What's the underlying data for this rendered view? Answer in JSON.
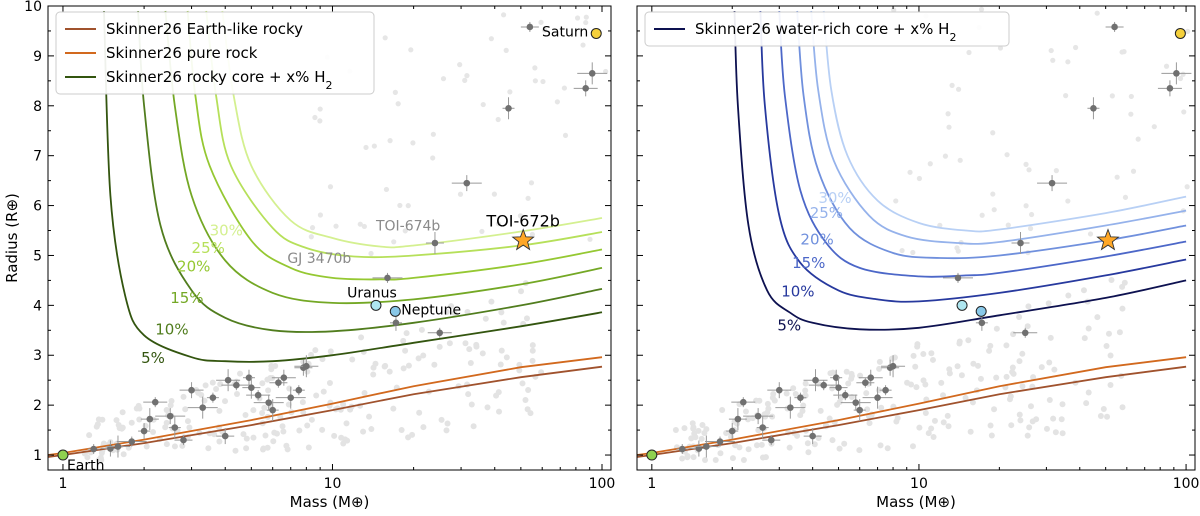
{
  "chart_data": [
    {
      "type": "line",
      "xlabel": "Mass (M⊕)",
      "ylabel": "Radius (R⊕)",
      "xscale": "log",
      "xlim": [
        0.88,
        108
      ],
      "ylim": [
        0.7,
        10
      ],
      "x_ticks": [
        1,
        10,
        100
      ],
      "x_tick_labels": [
        "1",
        "10",
        "100"
      ],
      "y_ticks": [
        1,
        2,
        3,
        4,
        5,
        6,
        7,
        8,
        9,
        10
      ],
      "legend_placement": "top-left",
      "grid": false,
      "legend": [
        {
          "label": "Skinner26 Earth-like rocky",
          "color": "#a0522d"
        },
        {
          "label": "Skinner26 pure rock",
          "color": "#d2691e"
        },
        {
          "label": "Skinner26 rocky core + x% H",
          "sub": "2",
          "color": "#33550f"
        }
      ],
      "rocky_curves": [
        {
          "name": "Skinner26 Earth-like rocky",
          "color": "#a0522d",
          "points": [
            [
              0.88,
              0.96
            ],
            [
              1,
              1.0
            ],
            [
              2,
              1.24
            ],
            [
              5,
              1.6
            ],
            [
              10,
              1.9
            ],
            [
              20,
              2.22
            ],
            [
              50,
              2.56
            ],
            [
              100,
              2.77
            ]
          ]
        },
        {
          "name": "Skinner26 pure rock",
          "color": "#d2691e",
          "points": [
            [
              0.88,
              1.0
            ],
            [
              1,
              1.04
            ],
            [
              2,
              1.31
            ],
            [
              5,
              1.7
            ],
            [
              10,
              2.03
            ],
            [
              20,
              2.38
            ],
            [
              50,
              2.76
            ],
            [
              100,
              2.96
            ]
          ]
        }
      ],
      "envelope_curves": [
        {
          "label": "5%",
          "color": "#33550f",
          "points": [
            [
              1.42,
              9.9
            ],
            [
              1.5,
              6.2
            ],
            [
              1.7,
              4.2
            ],
            [
              2,
              3.4
            ],
            [
              3,
              2.96
            ],
            [
              4,
              2.88
            ],
            [
              6,
              2.88
            ],
            [
              10,
              3.0
            ],
            [
              20,
              3.25
            ],
            [
              50,
              3.58
            ],
            [
              100,
              3.86
            ]
          ]
        },
        {
          "label": "10%",
          "color": "#517d1e",
          "points": [
            [
              1.9,
              9.9
            ],
            [
              2,
              8.0
            ],
            [
              2.3,
              5.6
            ],
            [
              3,
              4.3
            ],
            [
              4,
              3.75
            ],
            [
              6,
              3.5
            ],
            [
              10,
              3.48
            ],
            [
              20,
              3.65
            ],
            [
              50,
              4.0
            ],
            [
              100,
              4.33
            ]
          ]
        },
        {
          "label": "15%",
          "color": "#74a825",
          "points": [
            [
              2.4,
              9.9
            ],
            [
              2.6,
              8.0
            ],
            [
              3,
              6.2
            ],
            [
              4,
              4.9
            ],
            [
              6,
              4.25
            ],
            [
              10,
              4.05
            ],
            [
              20,
              4.12
            ],
            [
              50,
              4.42
            ],
            [
              100,
              4.75
            ]
          ]
        },
        {
          "label": "20%",
          "color": "#95c832",
          "points": [
            [
              2.9,
              9.9
            ],
            [
              3.1,
              8.2
            ],
            [
              3.5,
              6.8
            ],
            [
              5,
              5.3
            ],
            [
              7,
              4.75
            ],
            [
              10,
              4.55
            ],
            [
              15,
              4.52
            ],
            [
              20,
              4.55
            ],
            [
              50,
              4.82
            ],
            [
              100,
              5.12
            ]
          ]
        },
        {
          "label": "25%",
          "color": "#b6e05a",
          "points": [
            [
              3.4,
              9.9
            ],
            [
              3.7,
              8.2
            ],
            [
              4.2,
              6.8
            ],
            [
              6,
              5.55
            ],
            [
              8,
              5.15
            ],
            [
              12,
              4.98
            ],
            [
              20,
              5.0
            ],
            [
              50,
              5.2
            ],
            [
              100,
              5.47
            ]
          ]
        },
        {
          "label": "30%",
          "color": "#d4f090",
          "points": [
            [
              3.9,
              9.9
            ],
            [
              4.3,
              8.2
            ],
            [
              5,
              6.8
            ],
            [
              7,
              5.7
            ],
            [
              10,
              5.35
            ],
            [
              15,
              5.18
            ],
            [
              20,
              5.2
            ],
            [
              50,
              5.48
            ],
            [
              100,
              5.75
            ]
          ]
        }
      ],
      "pct_labels": [
        {
          "text": "5%",
          "color": "#33550f",
          "x": 1.95,
          "y": 2.84
        },
        {
          "text": "10%",
          "color": "#517d1e",
          "x": 2.2,
          "y": 3.42
        },
        {
          "text": "15%",
          "color": "#74a825",
          "x": 2.5,
          "y": 4.05
        },
        {
          "text": "20%",
          "color": "#95c832",
          "x": 2.65,
          "y": 4.68
        },
        {
          "text": "25%",
          "color": "#b6e05a",
          "x": 3.0,
          "y": 5.05
        },
        {
          "text": "30%",
          "color": "#d4f090",
          "x": 3.5,
          "y": 5.4
        }
      ],
      "points_measured": [
        [
          1.3,
          1.12
        ],
        [
          1.5,
          1.13
        ],
        [
          1.6,
          1.17
        ],
        [
          1.8,
          1.27
        ],
        [
          2.0,
          1.48
        ],
        [
          2.1,
          1.72
        ],
        [
          2.2,
          2.06
        ],
        [
          2.5,
          1.78
        ],
        [
          2.6,
          1.55
        ],
        [
          2.8,
          1.3
        ],
        [
          3.0,
          2.3
        ],
        [
          3.3,
          1.95
        ],
        [
          3.6,
          2.15
        ],
        [
          4.0,
          1.38
        ],
        [
          4.1,
          2.5
        ],
        [
          4.4,
          2.4
        ],
        [
          4.9,
          2.55
        ],
        [
          5.0,
          2.35
        ],
        [
          5.3,
          2.2
        ],
        [
          5.8,
          2.05
        ],
        [
          6.0,
          1.9
        ],
        [
          6.3,
          2.45
        ],
        [
          6.6,
          2.55
        ],
        [
          7.0,
          2.15
        ],
        [
          7.5,
          2.3
        ],
        [
          7.8,
          2.75
        ],
        [
          8.0,
          2.78
        ],
        [
          16,
          4.55
        ],
        [
          17.2,
          3.65
        ],
        [
          24,
          5.25
        ],
        [
          25,
          3.45
        ],
        [
          31.5,
          6.45
        ],
        [
          45,
          7.95
        ],
        [
          54,
          9.58
        ],
        [
          87,
          8.35
        ],
        [
          92,
          8.65
        ]
      ],
      "planets": [
        {
          "name": "Earth",
          "x": 1.0,
          "y": 1.0,
          "color": "#8fd14f"
        },
        {
          "name": "Uranus",
          "x": 14.5,
          "y": 4.0,
          "color": "#aee6f0"
        },
        {
          "name": "Neptune",
          "x": 17.1,
          "y": 3.88,
          "color": "#89c8e8"
        },
        {
          "name": "Saturn",
          "x": 95.2,
          "y": 9.45,
          "color": "#f5d03b"
        }
      ],
      "target": {
        "name": "TOI-672b",
        "x": 51,
        "y": 5.3,
        "color": "#ffa726"
      },
      "annotations": [
        {
          "text": "TOI-674b",
          "x": 14.5,
          "y": 5.5
        },
        {
          "text": "GJ 3470b",
          "x": 6.8,
          "y": 4.85
        }
      ]
    },
    {
      "type": "line",
      "xlabel": "Mass (M⊕)",
      "ylabel": "",
      "xscale": "log",
      "xlim": [
        0.88,
        108
      ],
      "ylim": [
        0.7,
        10
      ],
      "x_ticks": [
        1,
        10,
        100
      ],
      "x_tick_labels": [
        "1",
        "10",
        "100"
      ],
      "y_ticks": [
        1,
        2,
        3,
        4,
        5,
        6,
        7,
        8,
        9,
        10
      ],
      "legend_placement": "top-left",
      "grid": false,
      "legend": [
        {
          "label": "Skinner26 water-rich core + x% H",
          "sub": "2",
          "color": "#0d1150"
        }
      ],
      "rocky_curves": [
        {
          "name": "Skinner26 Earth-like rocky",
          "color": "#a0522d",
          "points": [
            [
              0.88,
              0.96
            ],
            [
              1,
              1.0
            ],
            [
              2,
              1.24
            ],
            [
              5,
              1.6
            ],
            [
              10,
              1.9
            ],
            [
              20,
              2.22
            ],
            [
              50,
              2.56
            ],
            [
              100,
              2.77
            ]
          ]
        },
        {
          "name": "Skinner26 pure rock",
          "color": "#d2691e",
          "points": [
            [
              0.88,
              1.0
            ],
            [
              1,
              1.04
            ],
            [
              2,
              1.31
            ],
            [
              5,
              1.7
            ],
            [
              10,
              2.03
            ],
            [
              20,
              2.38
            ],
            [
              50,
              2.76
            ],
            [
              100,
              2.96
            ]
          ]
        }
      ],
      "envelope_curves": [
        {
          "label": "5%",
          "color": "#0d1150",
          "points": [
            [
              2.04,
              9.9
            ],
            [
              2.1,
              8.0
            ],
            [
              2.3,
              5.6
            ],
            [
              2.7,
              4.3
            ],
            [
              3.3,
              3.85
            ],
            [
              4,
              3.65
            ],
            [
              6,
              3.52
            ],
            [
              10,
              3.55
            ],
            [
              20,
              3.8
            ],
            [
              50,
              4.15
            ],
            [
              100,
              4.5
            ]
          ]
        },
        {
          "label": "10%",
          "color": "#27399e",
          "points": [
            [
              2.55,
              9.9
            ],
            [
              2.65,
              8.0
            ],
            [
              3,
              5.8
            ],
            [
              3.6,
              4.85
            ],
            [
              5,
              4.3
            ],
            [
              7,
              4.12
            ],
            [
              10,
              4.08
            ],
            [
              20,
              4.25
            ],
            [
              50,
              4.6
            ],
            [
              100,
              4.92
            ]
          ]
        },
        {
          "label": "15%",
          "color": "#4c67c8",
          "points": [
            [
              3.0,
              9.9
            ],
            [
              3.15,
              8.2
            ],
            [
              3.6,
              6.3
            ],
            [
              4.5,
              5.25
            ],
            [
              6,
              4.75
            ],
            [
              10,
              4.58
            ],
            [
              15,
              4.6
            ],
            [
              20,
              4.65
            ],
            [
              50,
              4.98
            ],
            [
              100,
              5.28
            ]
          ]
        },
        {
          "label": "20%",
          "color": "#7090dd",
          "points": [
            [
              3.5,
              9.9
            ],
            [
              3.7,
              8.2
            ],
            [
              4.2,
              6.7
            ],
            [
              5.5,
              5.55
            ],
            [
              8,
              5.05
            ],
            [
              12,
              4.95
            ],
            [
              20,
              5.0
            ],
            [
              50,
              5.3
            ],
            [
              100,
              5.6
            ]
          ]
        },
        {
          "label": "25%",
          "color": "#95b2eb",
          "points": [
            [
              3.95,
              9.9
            ],
            [
              4.2,
              8.3
            ],
            [
              4.8,
              6.9
            ],
            [
              6.5,
              5.8
            ],
            [
              9,
              5.38
            ],
            [
              14,
              5.25
            ],
            [
              20,
              5.27
            ],
            [
              50,
              5.6
            ],
            [
              100,
              5.9
            ]
          ]
        },
        {
          "label": "30%",
          "color": "#b8d0f5",
          "points": [
            [
              4.4,
              9.9
            ],
            [
              4.7,
              8.3
            ],
            [
              5.4,
              7.0
            ],
            [
              7,
              6.1
            ],
            [
              10,
              5.65
            ],
            [
              15,
              5.5
            ],
            [
              20,
              5.52
            ],
            [
              50,
              5.85
            ],
            [
              100,
              6.18
            ]
          ]
        }
      ],
      "pct_labels": [
        {
          "text": "5%",
          "color": "#0d1150",
          "x": 2.95,
          "y": 3.5
        },
        {
          "text": "10%",
          "color": "#27399e",
          "x": 3.05,
          "y": 4.18
        },
        {
          "text": "15%",
          "color": "#4c67c8",
          "x": 3.35,
          "y": 4.75
        },
        {
          "text": "20%",
          "color": "#7090dd",
          "x": 3.6,
          "y": 5.22
        },
        {
          "text": "25%",
          "color": "#95b2eb",
          "x": 3.9,
          "y": 5.75
        },
        {
          "text": "30%",
          "color": "#b8d0f5",
          "x": 4.2,
          "y": 6.05
        }
      ],
      "points_measured": [
        [
          1.3,
          1.12
        ],
        [
          1.5,
          1.13
        ],
        [
          1.6,
          1.17
        ],
        [
          1.8,
          1.27
        ],
        [
          2.0,
          1.48
        ],
        [
          2.1,
          1.72
        ],
        [
          2.2,
          2.06
        ],
        [
          2.5,
          1.78
        ],
        [
          2.6,
          1.55
        ],
        [
          2.8,
          1.3
        ],
        [
          3.0,
          2.3
        ],
        [
          3.3,
          1.95
        ],
        [
          3.6,
          2.15
        ],
        [
          4.0,
          1.38
        ],
        [
          4.1,
          2.5
        ],
        [
          4.4,
          2.4
        ],
        [
          4.9,
          2.55
        ],
        [
          5.0,
          2.35
        ],
        [
          5.3,
          2.2
        ],
        [
          5.8,
          2.05
        ],
        [
          6.0,
          1.9
        ],
        [
          6.3,
          2.45
        ],
        [
          6.6,
          2.55
        ],
        [
          7.0,
          2.15
        ],
        [
          7.5,
          2.3
        ],
        [
          7.8,
          2.75
        ],
        [
          8.0,
          2.78
        ],
        [
          14,
          4.55
        ],
        [
          17.2,
          3.65
        ],
        [
          24,
          5.25
        ],
        [
          25,
          3.45
        ],
        [
          31.5,
          6.45
        ],
        [
          45,
          7.95
        ],
        [
          54,
          9.58
        ],
        [
          87,
          8.35
        ],
        [
          92,
          8.65
        ]
      ],
      "planets": [
        {
          "name": "Earth",
          "x": 1.0,
          "y": 1.0,
          "color": "#8fd14f"
        },
        {
          "name": "Uranus",
          "x": 14.5,
          "y": 4.0,
          "color": "#aee6f0"
        },
        {
          "name": "Neptune",
          "x": 17.1,
          "y": 3.88,
          "color": "#89c8e8"
        },
        {
          "name": "Saturn",
          "x": 95.2,
          "y": 9.45,
          "color": "#f5d03b"
        }
      ],
      "target": {
        "name": "TOI-672b",
        "x": 51,
        "y": 5.3,
        "color": "#ffa726"
      },
      "annotations": []
    }
  ]
}
